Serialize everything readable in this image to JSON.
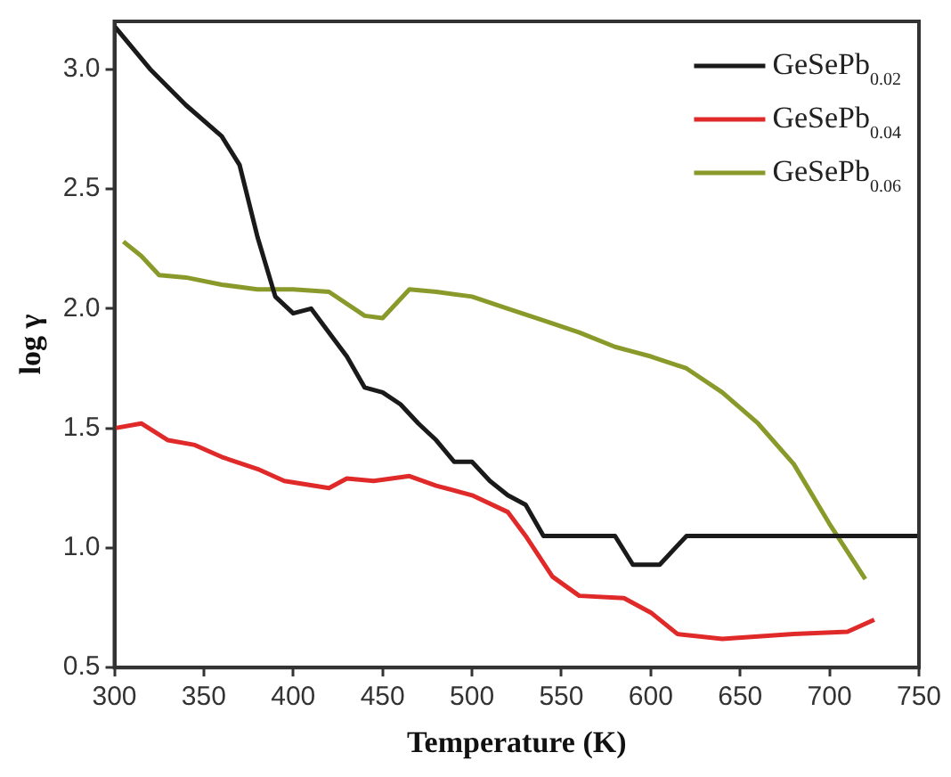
{
  "chart_data": {
    "type": "line",
    "xlabel": "Temperature (K)",
    "ylabel": "log γ",
    "xlim": [
      300,
      750
    ],
    "xticks": [
      300,
      350,
      400,
      450,
      500,
      550,
      600,
      650,
      700,
      750
    ],
    "ylim": [
      0.5,
      3.2
    ],
    "yticks": [
      0.5,
      {
        "value": 1,
        "label": "1.0"
      },
      1.5,
      {
        "value": 2,
        "label": "2.0"
      },
      2.5,
      {
        "value": 3,
        "label": "3.0"
      }
    ],
    "grid": false,
    "legend": "top right",
    "marker": "none",
    "line_style": "solid",
    "series": [
      {
        "name": "GeSePb$_{0.02}$",
        "color": "#1a1a1a",
        "x": [
          300,
          320,
          340,
          360,
          370,
          380,
          390,
          400,
          410,
          420,
          430,
          440,
          450,
          460,
          470,
          480,
          490,
          500,
          510,
          520,
          530,
          540,
          580,
          590,
          605,
          620,
          750
        ],
        "values": [
          3.18,
          3.0,
          2.85,
          2.72,
          2.6,
          2.3,
          2.05,
          1.98,
          2.0,
          1.9,
          1.8,
          1.67,
          1.65,
          1.6,
          1.52,
          1.45,
          1.36,
          1.36,
          1.28,
          1.22,
          1.18,
          1.05,
          1.05,
          0.93,
          0.93,
          1.05,
          1.05
        ]
      },
      {
        "name": "GeSePb$_{0.04}$",
        "color": "#e02a2a",
        "x": [
          300,
          315,
          330,
          345,
          360,
          380,
          395,
          420,
          430,
          445,
          465,
          480,
          500,
          520,
          530,
          545,
          560,
          585,
          600,
          615,
          640,
          680,
          710,
          725
        ],
        "values": [
          1.5,
          1.52,
          1.45,
          1.43,
          1.38,
          1.33,
          1.28,
          1.25,
          1.29,
          1.28,
          1.3,
          1.26,
          1.22,
          1.15,
          1.05,
          0.88,
          0.8,
          0.79,
          0.73,
          0.64,
          0.62,
          0.64,
          0.65,
          0.7
        ]
      },
      {
        "name": "GeSePb$_{0.06}$",
        "color": "#8a9a2a",
        "x": [
          305,
          315,
          325,
          340,
          360,
          380,
          400,
          420,
          440,
          450,
          465,
          480,
          500,
          520,
          540,
          560,
          580,
          590,
          600,
          620,
          640,
          660,
          680,
          700,
          720
        ],
        "values": [
          2.28,
          2.22,
          2.14,
          2.13,
          2.1,
          2.08,
          2.08,
          2.07,
          1.97,
          1.96,
          2.08,
          2.07,
          2.05,
          2.0,
          1.95,
          1.9,
          1.84,
          1.82,
          1.8,
          1.75,
          1.65,
          1.52,
          1.35,
          1.1,
          0.87
        ]
      }
    ]
  }
}
